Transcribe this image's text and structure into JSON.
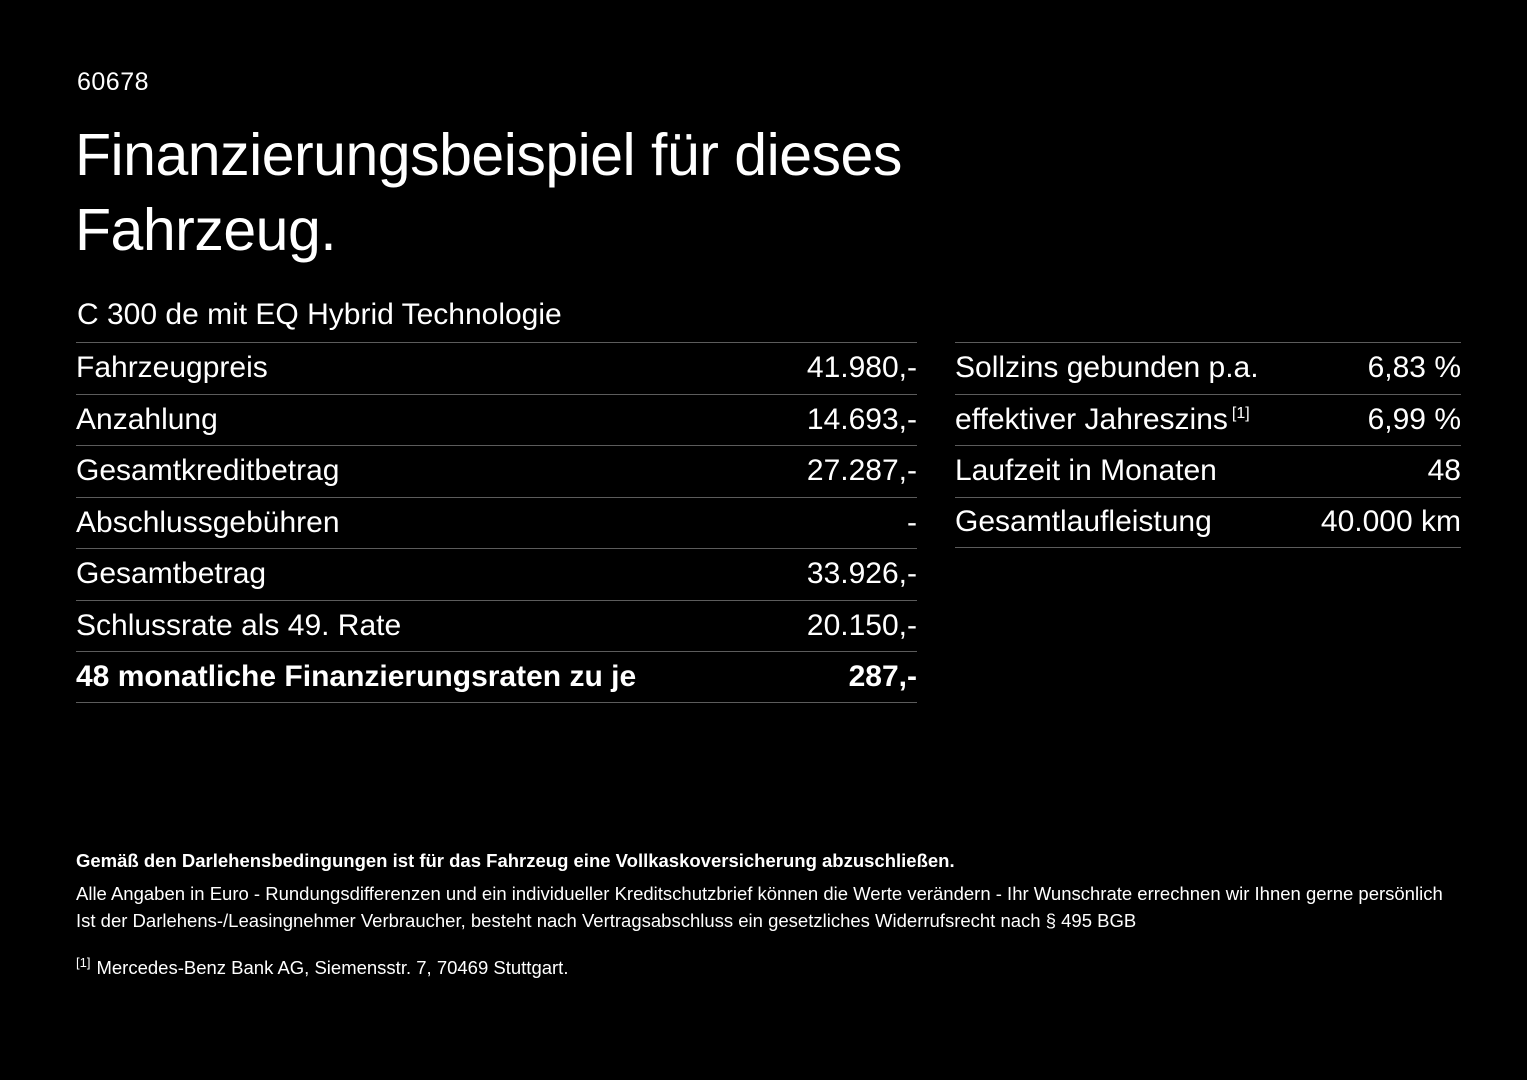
{
  "page": {
    "doc_id": "60678",
    "title_line1": "Finanzierungsbeispiel für dieses",
    "title_line2": "Fahrzeug.",
    "subtitle": "C 300 de mit EQ Hybrid Technologie"
  },
  "left_table": {
    "rows": [
      {
        "label": "Fahrzeugpreis",
        "value": "41.980,-"
      },
      {
        "label": "Anzahlung",
        "value": "14.693,-"
      },
      {
        "label": "Gesamtkreditbetrag",
        "value": "27.287,-"
      },
      {
        "label": "Abschlussgebühren",
        "value": "-"
      },
      {
        "label": "Gesamtbetrag",
        "value": "33.926,-"
      },
      {
        "label": "Schlussrate als 49. Rate",
        "value": "20.150,-"
      },
      {
        "label": "48 monatliche Finanzierungsraten zu je",
        "value": "287,-"
      }
    ]
  },
  "right_table": {
    "rows": [
      {
        "label": "Sollzins gebunden p.a.",
        "value": "6,83 %"
      },
      {
        "label": "effektiver Jahreszins",
        "sup": "[1]",
        "value": "6,99 %"
      },
      {
        "label": "Laufzeit in Monaten",
        "value": "48"
      },
      {
        "label": "Gesamtlaufleistung",
        "value": "40.000 km"
      }
    ]
  },
  "footer": {
    "bold_note": "Gemäß den Darlehensbedingungen ist für das Fahrzeug eine Vollkaskoversicherung abzuschließen.",
    "note_line1": "Alle Angaben in Euro - Rundungsdifferenzen und ein individueller Kreditschutzbrief können die Werte verändern - Ihr Wunschrate errechnen wir Ihnen gerne persönlich",
    "note_line2": "Ist der Darlehens-/Leasingnehmer Verbraucher, besteht nach Vertragsabschluss ein gesetzliches Widerrufsrecht nach § 495 BGB",
    "footnote_marker": "[1]",
    "footnote_text": "Mercedes-Benz Bank AG, Siemensstr. 7, 70469 Stuttgart."
  },
  "colors": {
    "background": "#000000",
    "text": "#ffffff",
    "divider": "#5c5c5c"
  }
}
